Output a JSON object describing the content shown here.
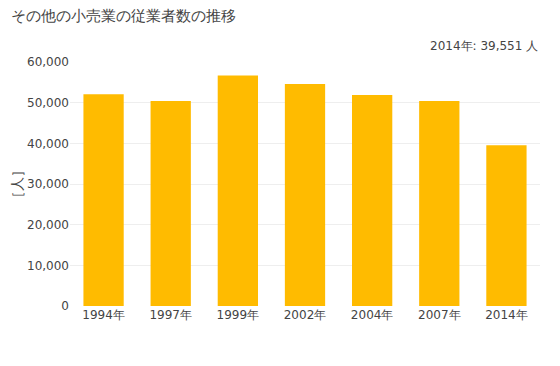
{
  "chart_data": {
    "type": "bar",
    "title": "その他の小売業の従業者数の推移",
    "ylabel": "［人］",
    "categories": [
      "1994年",
      "1997年",
      "1999年",
      "2002年",
      "2004年",
      "2007年",
      "2014年"
    ],
    "values": [
      52100,
      50400,
      56700,
      54600,
      51900,
      50400,
      39551
    ],
    "color": "#FFBB00",
    "ylim": [
      0,
      60000
    ],
    "yticks": [
      0,
      {
        "value": 10000,
        "label": "10,000"
      },
      {
        "value": 20000,
        "label": "20,000"
      },
      {
        "value": 30000,
        "label": "30,000"
      },
      {
        "value": 40000,
        "label": "40,000"
      },
      {
        "value": 50000,
        "label": "50,000"
      },
      {
        "value": 60000,
        "label": "60,000"
      }
    ],
    "annotations": [
      "2014年: 39,551 人"
    ],
    "grid": true
  }
}
